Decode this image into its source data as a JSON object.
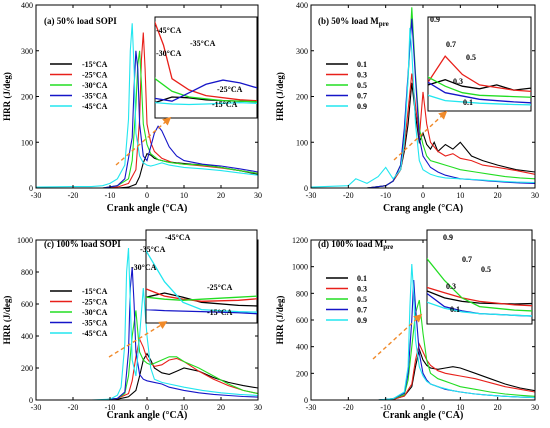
{
  "figure": {
    "colors": {
      "black": "#000000",
      "red": "#e8201a",
      "green": "#22dd22",
      "blue": "#1515c8",
      "cyan": "#22e6ef",
      "arrow": "#f08a2a"
    }
  },
  "chart_data": [
    {
      "id": "a",
      "type": "line",
      "title": "(a) 50% load SOPI",
      "xlabel": "Crank angle (°CA)",
      "ylabel": "HRR (J/deg)",
      "xlim": [
        -30,
        30
      ],
      "ylim": [
        0,
        400
      ],
      "xticks": [
        "-30",
        "-20",
        "-10",
        "0",
        "10",
        "20",
        "30"
      ],
      "yticks": [
        "0",
        "100",
        "200",
        "300",
        "400"
      ],
      "legend": [
        "-15°CA",
        "-25°CA",
        "-30°CA",
        "-35°CA",
        "-45°CA"
      ],
      "inset_labels": [
        "-45°CA",
        "-35°CA",
        "-30°CA",
        "-25°CA",
        "-15°CA"
      ],
      "series": [
        {
          "name": "-15°CA",
          "color": "black",
          "x": [
            -30,
            -12,
            -8,
            -5,
            -3,
            -2,
            -1,
            0,
            1,
            2,
            3,
            5,
            8,
            12,
            16,
            20,
            25,
            30
          ],
          "y": [
            0,
            0,
            0,
            2,
            8,
            25,
            55,
            75,
            72,
            65,
            62,
            58,
            55,
            52,
            50,
            45,
            38,
            30
          ]
        },
        {
          "name": "-25°CA",
          "color": "red",
          "x": [
            -30,
            -12,
            -8,
            -5,
            -3,
            -2,
            -1.5,
            -1,
            -0.5,
            0,
            1,
            2,
            4,
            7,
            10,
            15,
            20,
            25,
            30
          ],
          "y": [
            0,
            0,
            2,
            10,
            40,
            150,
            280,
            340,
            260,
            140,
            100,
            80,
            65,
            55,
            52,
            48,
            44,
            38,
            32
          ]
        },
        {
          "name": "-30°CA",
          "color": "green",
          "x": [
            -30,
            -12,
            -8,
            -5,
            -4,
            -3,
            -2.5,
            -2,
            -1.5,
            -1,
            0,
            1,
            3,
            6,
            10,
            15,
            20,
            25,
            30
          ],
          "y": [
            0,
            0,
            5,
            20,
            60,
            180,
            270,
            300,
            230,
            140,
            95,
            75,
            62,
            56,
            52,
            50,
            45,
            38,
            32
          ]
        },
        {
          "name": "-35°CA",
          "color": "blue",
          "x": [
            -30,
            -12,
            -8,
            -6,
            -4,
            -3.5,
            -3,
            -2.5,
            -2,
            -1,
            0,
            1,
            2,
            3,
            4,
            6,
            8,
            10,
            15,
            20,
            25,
            30
          ],
          "y": [
            0,
            0,
            5,
            20,
            110,
            220,
            300,
            260,
            140,
            70,
            60,
            90,
            120,
            135,
            125,
            90,
            70,
            60,
            52,
            48,
            42,
            35
          ]
        },
        {
          "name": "-45°CA",
          "color": "cyan",
          "x": [
            -30,
            -20,
            -15,
            -12,
            -10,
            -8,
            -6,
            -5,
            -4.5,
            -4,
            -3.5,
            -3,
            -2,
            -1,
            0,
            1,
            2,
            4,
            6,
            10,
            15,
            20,
            25,
            30
          ],
          "y": [
            2,
            3,
            3,
            5,
            10,
            20,
            50,
            150,
            300,
            360,
            260,
            120,
            70,
            55,
            50,
            48,
            50,
            55,
            50,
            45,
            42,
            38,
            33,
            28
          ]
        }
      ]
    },
    {
      "id": "b",
      "type": "line",
      "title": "(b) 50% load M",
      "title_sub": "pre",
      "xlabel": "Crang angle (°CA)",
      "ylabel": "HRR (J/deg)",
      "xlim": [
        -30,
        30
      ],
      "ylim": [
        0,
        400
      ],
      "xticks": [
        "-30",
        "-20",
        "-10",
        "0",
        "10",
        "20",
        "30"
      ],
      "yticks": [
        "0",
        "100",
        "200",
        "300",
        "400"
      ],
      "legend": [
        "0.1",
        "0.3",
        "0.5",
        "0.7",
        "0.9"
      ],
      "inset_labels": [
        "0.9",
        "0.7",
        "0.5",
        "0.3",
        "0.1"
      ],
      "series": [
        {
          "name": "0.1",
          "color": "black",
          "x": [
            -30,
            -15,
            -10,
            -8,
            -6,
            -5,
            -4,
            -3,
            -2,
            -1,
            0,
            1,
            2,
            3,
            4,
            6,
            8,
            10,
            13,
            16,
            20,
            25,
            30
          ],
          "y": [
            0,
            0,
            5,
            15,
            40,
            80,
            140,
            230,
            160,
            100,
            120,
            95,
            85,
            100,
            80,
            95,
            85,
            100,
            70,
            60,
            50,
            40,
            35
          ]
        },
        {
          "name": "0.3",
          "color": "red",
          "x": [
            -30,
            -15,
            -10,
            -8,
            -6,
            -5,
            -4,
            -3,
            -2,
            -1,
            0,
            1,
            2,
            4,
            6,
            8,
            10,
            13,
            16,
            20,
            25,
            30
          ],
          "y": [
            0,
            0,
            5,
            15,
            40,
            90,
            170,
            250,
            180,
            110,
            210,
            140,
            100,
            80,
            70,
            75,
            65,
            60,
            50,
            45,
            38,
            30
          ]
        },
        {
          "name": "0.5",
          "color": "green",
          "x": [
            -30,
            -15,
            -10,
            -8,
            -6,
            -5,
            -4,
            -3,
            -2,
            -1,
            0,
            1,
            2,
            4,
            6,
            8,
            10,
            14,
            18,
            22,
            26,
            30
          ],
          "y": [
            0,
            0,
            5,
            15,
            50,
            120,
            240,
            395,
            250,
            130,
            95,
            70,
            60,
            55,
            50,
            45,
            40,
            35,
            30,
            25,
            22,
            20
          ]
        },
        {
          "name": "0.7",
          "color": "blue",
          "x": [
            -30,
            -15,
            -10,
            -8,
            -6,
            -5,
            -4,
            -3,
            -2,
            -1,
            0,
            2,
            4,
            6,
            8,
            10,
            14,
            18,
            22,
            26,
            30
          ],
          "y": [
            0,
            0,
            5,
            15,
            50,
            130,
            250,
            370,
            240,
            110,
            70,
            45,
            35,
            28,
            24,
            20,
            18,
            15,
            13,
            11,
            10
          ]
        },
        {
          "name": "0.9",
          "color": "cyan",
          "x": [
            -30,
            -20,
            -18,
            -15,
            -12,
            -10,
            -8,
            -6,
            -5,
            -4,
            -3.5,
            -3,
            -2,
            -1,
            0,
            2,
            4,
            6,
            10,
            15,
            20,
            25,
            30
          ],
          "y": [
            2,
            5,
            20,
            10,
            25,
            45,
            20,
            40,
            100,
            240,
            350,
            300,
            140,
            60,
            40,
            30,
            25,
            22,
            20,
            18,
            15,
            13,
            12
          ]
        }
      ]
    },
    {
      "id": "c",
      "type": "line",
      "title": "(c) 100% load SOPI",
      "xlabel": "Crank angle (°CA)",
      "ylabel": "HRR (J/deg)",
      "xlim": [
        -30,
        30
      ],
      "ylim": [
        0,
        1000
      ],
      "xticks": [
        "-30",
        "-20",
        "-10",
        "0",
        "10",
        "20",
        "30"
      ],
      "yticks": [
        "0",
        "200",
        "400",
        "600",
        "800",
        "1000"
      ],
      "legend": [
        "-15°CA",
        "-25°CA",
        "-30°CA",
        "-35°CA",
        "-45°CA"
      ],
      "inset_labels": [
        "-45°CA",
        "-35°CA",
        "-30°CA",
        "-25°CA",
        "-15°CA"
      ],
      "series": [
        {
          "name": "-15°CA",
          "color": "black",
          "x": [
            -30,
            -12,
            -8,
            -5,
            -3,
            -2,
            -1,
            0,
            1,
            2,
            4,
            6,
            8,
            10,
            14,
            18,
            22,
            26,
            30
          ],
          "y": [
            0,
            0,
            5,
            20,
            60,
            150,
            250,
            290,
            250,
            200,
            170,
            160,
            180,
            200,
            180,
            140,
            110,
            90,
            75
          ]
        },
        {
          "name": "-25°CA",
          "color": "red",
          "x": [
            -30,
            -12,
            -8,
            -5,
            -4,
            -3,
            -2,
            -1,
            0,
            1,
            2,
            4,
            6,
            8,
            10,
            14,
            18,
            22,
            26,
            30
          ],
          "y": [
            0,
            0,
            10,
            40,
            120,
            270,
            380,
            330,
            260,
            230,
            210,
            220,
            250,
            260,
            240,
            180,
            130,
            90,
            60,
            40
          ]
        },
        {
          "name": "-30°CA",
          "color": "green",
          "x": [
            -30,
            -12,
            -8,
            -6,
            -5,
            -4,
            -3,
            -2,
            -1,
            0,
            1,
            2,
            4,
            6,
            8,
            10,
            14,
            18,
            22,
            26,
            30
          ],
          "y": [
            0,
            0,
            10,
            40,
            150,
            400,
            560,
            300,
            250,
            230,
            220,
            230,
            250,
            270,
            270,
            240,
            200,
            150,
            100,
            60,
            40
          ]
        },
        {
          "name": "-35°CA",
          "color": "blue",
          "x": [
            -30,
            -12,
            -8,
            -6,
            -5,
            -4.5,
            -4,
            -3.5,
            -3,
            -2,
            -1,
            0,
            2,
            4,
            6,
            8,
            10,
            14,
            18,
            22,
            26,
            30
          ],
          "y": [
            0,
            0,
            10,
            50,
            300,
            700,
            830,
            600,
            300,
            160,
            130,
            120,
            110,
            100,
            80,
            70,
            60,
            45,
            35,
            28,
            22,
            18
          ]
        },
        {
          "name": "-45°CA",
          "color": "cyan",
          "x": [
            -30,
            -15,
            -10,
            -8,
            -7,
            -6,
            -5.5,
            -5,
            -4.5,
            -4,
            -3,
            -2,
            -1,
            0,
            1,
            2,
            4,
            6,
            10,
            15,
            20,
            25,
            30
          ],
          "y": [
            0,
            0,
            5,
            30,
            80,
            350,
            800,
            950,
            600,
            250,
            150,
            400,
            700,
            400,
            200,
            130,
            110,
            100,
            80,
            60,
            45,
            35,
            28
          ]
        }
      ]
    },
    {
      "id": "d",
      "type": "line",
      "title": "(d) 100% load M",
      "title_sub": "pre",
      "xlabel": "Crank angle (°CA)",
      "ylabel": "HRR (J/deg)",
      "xlim": [
        -30,
        30
      ],
      "ylim": [
        0,
        1200
      ],
      "xticks": [
        "-30",
        "-20",
        "-10",
        "0",
        "10",
        "20",
        "30"
      ],
      "yticks": [
        "0",
        "200",
        "400",
        "600",
        "800",
        "1000",
        "1200"
      ],
      "legend": [
        "0.1",
        "0.3",
        "0.5",
        "0.7",
        "0.9"
      ],
      "inset_labels": [
        "0.9",
        "0.7",
        "0.5",
        "0.3",
        "0.1"
      ],
      "series": [
        {
          "name": "0.1",
          "color": "black",
          "x": [
            -30,
            -12,
            -8,
            -5,
            -3,
            -2,
            -1,
            0,
            1,
            2,
            4,
            6,
            8,
            10,
            14,
            18,
            22,
            26,
            30
          ],
          "y": [
            0,
            0,
            5,
            30,
            100,
            250,
            380,
            300,
            260,
            240,
            230,
            240,
            250,
            240,
            200,
            160,
            120,
            90,
            70
          ]
        },
        {
          "name": "0.3",
          "color": "red",
          "x": [
            -30,
            -12,
            -8,
            -5,
            -3,
            -2,
            -1,
            0,
            1,
            2,
            4,
            6,
            8,
            10,
            14,
            18,
            22,
            26,
            30
          ],
          "y": [
            0,
            0,
            5,
            30,
            120,
            300,
            420,
            360,
            300,
            260,
            220,
            200,
            190,
            180,
            160,
            130,
            100,
            80,
            60
          ]
        },
        {
          "name": "0.5",
          "color": "green",
          "x": [
            -30,
            -12,
            -8,
            -5,
            -4,
            -3,
            -2,
            -1,
            0,
            1,
            2,
            4,
            6,
            8,
            10,
            14,
            18,
            22,
            26,
            30
          ],
          "y": [
            0,
            0,
            10,
            40,
            150,
            400,
            650,
            750,
            500,
            300,
            200,
            160,
            140,
            120,
            100,
            80,
            60,
            45,
            35,
            28
          ]
        },
        {
          "name": "0.7",
          "color": "blue",
          "x": [
            -30,
            -12,
            -8,
            -5,
            -4,
            -3,
            -2.5,
            -2,
            -1,
            0,
            1,
            2,
            4,
            6,
            8,
            10,
            14,
            18,
            22,
            26,
            30
          ],
          "y": [
            0,
            0,
            10,
            50,
            200,
            600,
            900,
            700,
            350,
            200,
            150,
            120,
            100,
            80,
            70,
            60,
            45,
            35,
            28,
            22,
            18
          ]
        },
        {
          "name": "0.9",
          "color": "cyan",
          "x": [
            -30,
            -12,
            -8,
            -5,
            -4,
            -3.5,
            -3,
            -2.5,
            -2,
            -1,
            0,
            1,
            2,
            4,
            6,
            8,
            10,
            14,
            18,
            22,
            26,
            30
          ],
          "y": [
            0,
            0,
            10,
            60,
            250,
            700,
            1020,
            800,
            450,
            250,
            180,
            140,
            120,
            100,
            85,
            70,
            60,
            45,
            35,
            28,
            22,
            18
          ]
        }
      ]
    }
  ]
}
